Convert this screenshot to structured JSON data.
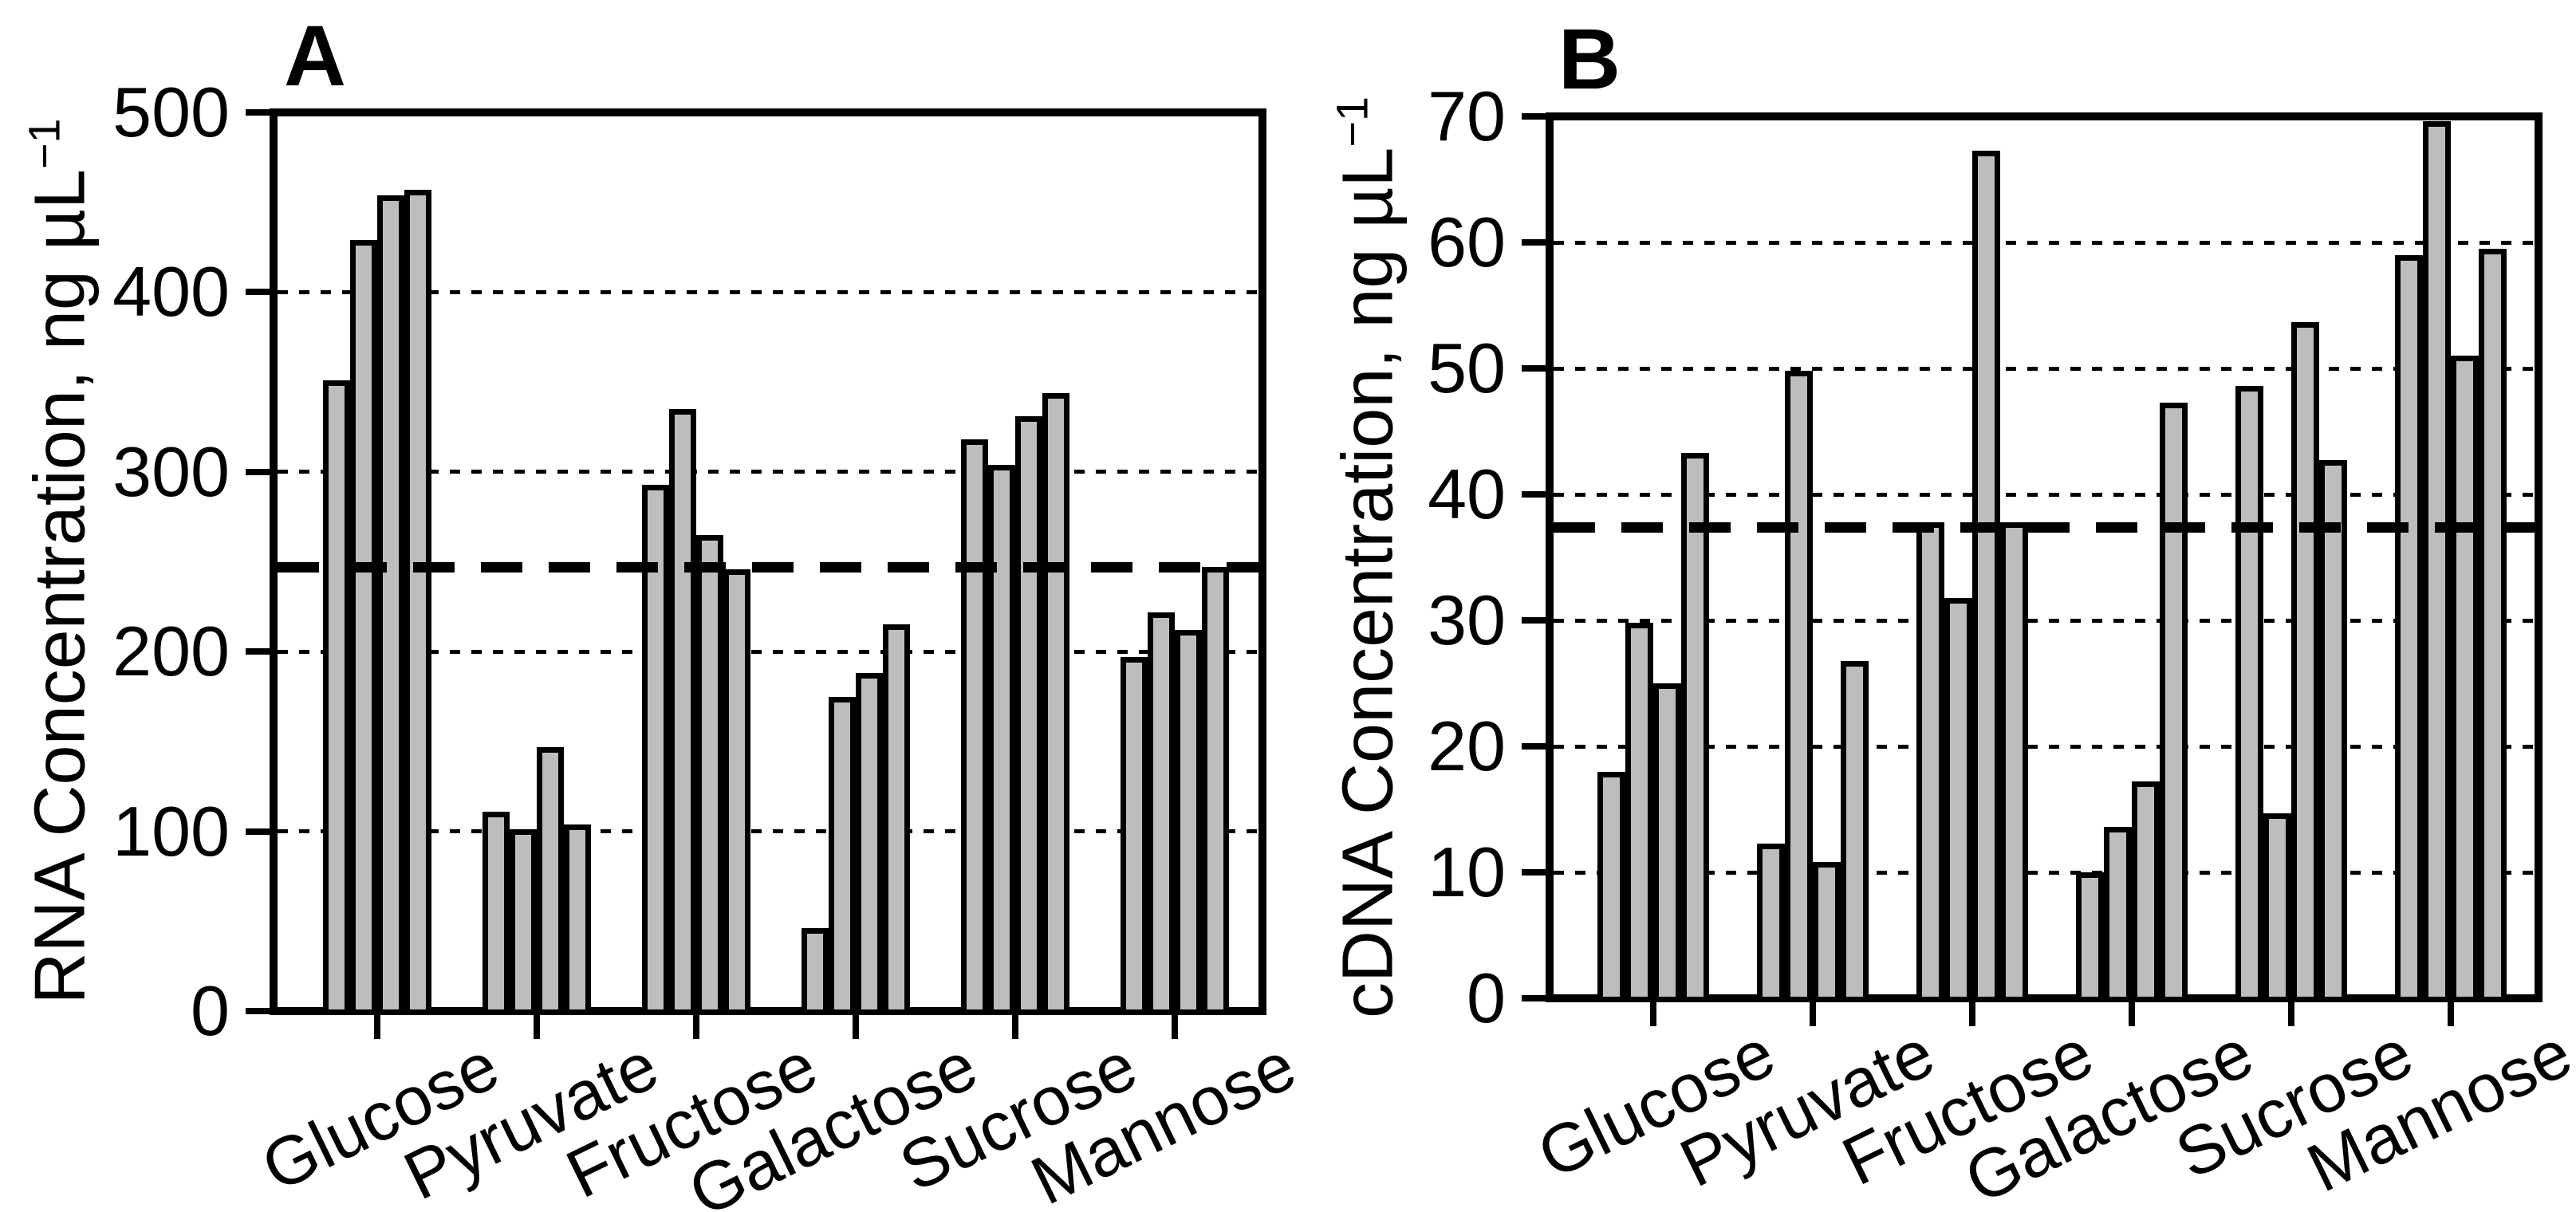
{
  "figure_title": "",
  "colors": {
    "bar_fill": "#bdbdbd",
    "bar_outline": "#000000",
    "axis_color": "#000000",
    "background": "#ffffff"
  },
  "chart_data": [
    {
      "type": "bar",
      "panel_label": "A",
      "ylabel": "RNA Concentration, ng µL⁻¹",
      "ylabel_main": "RNA Concentration, ng µL",
      "ylabel_superscript": "−1",
      "ylim": [
        0,
        500
      ],
      "ytick_interval": 100,
      "ytick_labels": [
        "0",
        "100",
        "200",
        "300",
        "400",
        "500"
      ],
      "grid": "horizontal dotted gridlines at 100, 200, 300, 400",
      "legend": "none",
      "reference_line": {
        "value": 247,
        "style": "thick black dashed horizontal line"
      },
      "categories": [
        "Glucose",
        "Pyruvate",
        "Fructose",
        "Galactose",
        "Sucrose",
        "Mannose"
      ],
      "replicates_per_category": 4,
      "values": [
        [
          351,
          429,
          454,
          457
        ],
        [
          111,
          101,
          147,
          104
        ],
        [
          293,
          335,
          265,
          246
        ],
        [
          46,
          175,
          188,
          215
        ],
        [
          318,
          304,
          331,
          344
        ],
        [
          197,
          222,
          212,
          247
        ]
      ]
    },
    {
      "type": "bar",
      "panel_label": "B",
      "ylabel": "cDNA Concentration, ng µL⁻¹",
      "ylabel_main": "cDNA Concentration, ng µL",
      "ylabel_superscript": "−1",
      "ylim": [
        0,
        70
      ],
      "ytick_interval": 10,
      "ytick_labels": [
        "0",
        "10",
        "20",
        "30",
        "40",
        "50",
        "60",
        "70"
      ],
      "grid": "horizontal dotted gridlines at 10, 20, 30, 40, 50, 60",
      "legend": "none",
      "reference_line": {
        "value": 37.4,
        "style": "thick black dashed horizontal line"
      },
      "categories": [
        "Glucose",
        "Pyruvate",
        "Fructose",
        "Galactose",
        "Sucrose",
        "Mannose"
      ],
      "replicates_per_category": 4,
      "values": [
        [
          18,
          29.8,
          25,
          43.3
        ],
        [
          12.3,
          49.8,
          10.8,
          26.8
        ],
        [
          37.8,
          31.8,
          67.3,
          37.8
        ],
        [
          10,
          13.6,
          17.2,
          47.3
        ],
        [
          48.6,
          14.7,
          53.7,
          42.7
        ],
        [
          59,
          69.6,
          51,
          59.5
        ]
      ]
    }
  ]
}
